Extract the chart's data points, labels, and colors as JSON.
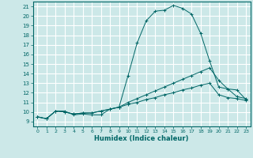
{
  "title": "",
  "xlabel": "Humidex (Indice chaleur)",
  "ylabel": "",
  "bg_color": "#cce8e8",
  "line_color": "#006666",
  "grid_color": "#ffffff",
  "xlim": [
    -0.5,
    23.5
  ],
  "ylim": [
    8.5,
    21.5
  ],
  "xticks": [
    0,
    1,
    2,
    3,
    4,
    5,
    6,
    7,
    8,
    9,
    10,
    11,
    12,
    13,
    14,
    15,
    16,
    17,
    18,
    19,
    20,
    21,
    22,
    23
  ],
  "yticks": [
    9,
    10,
    11,
    12,
    13,
    14,
    15,
    16,
    17,
    18,
    19,
    20,
    21
  ],
  "series": [
    {
      "x": [
        0,
        1,
        2,
        3,
        4,
        5,
        6,
        7,
        8,
        9,
        10,
        11,
        12,
        13,
        14,
        15,
        16,
        17,
        18,
        19,
        20,
        21,
        22,
        23
      ],
      "y": [
        9.5,
        9.3,
        10.1,
        10.1,
        9.7,
        9.8,
        9.7,
        9.7,
        10.3,
        10.5,
        13.8,
        17.2,
        19.5,
        20.5,
        20.6,
        21.1,
        20.8,
        20.2,
        18.2,
        15.3,
        12.6,
        12.4,
        11.6,
        11.4
      ]
    },
    {
      "x": [
        0,
        1,
        2,
        3,
        4,
        5,
        6,
        7,
        8,
        9,
        10,
        11,
        12,
        13,
        14,
        15,
        16,
        17,
        18,
        19,
        20,
        21,
        22,
        23
      ],
      "y": [
        9.5,
        9.3,
        10.1,
        10.0,
        9.8,
        9.9,
        9.9,
        10.1,
        10.3,
        10.5,
        11.0,
        11.4,
        11.8,
        12.2,
        12.6,
        13.0,
        13.4,
        13.8,
        14.2,
        14.6,
        13.3,
        12.4,
        12.3,
        11.3
      ]
    },
    {
      "x": [
        0,
        1,
        2,
        3,
        4,
        5,
        6,
        7,
        8,
        9,
        10,
        11,
        12,
        13,
        14,
        15,
        16,
        17,
        18,
        19,
        20,
        21,
        22,
        23
      ],
      "y": [
        9.5,
        9.3,
        10.1,
        10.0,
        9.8,
        9.9,
        9.9,
        10.1,
        10.3,
        10.5,
        10.8,
        11.0,
        11.3,
        11.5,
        11.8,
        12.0,
        12.3,
        12.5,
        12.8,
        13.0,
        11.8,
        11.5,
        11.4,
        11.2
      ]
    }
  ]
}
